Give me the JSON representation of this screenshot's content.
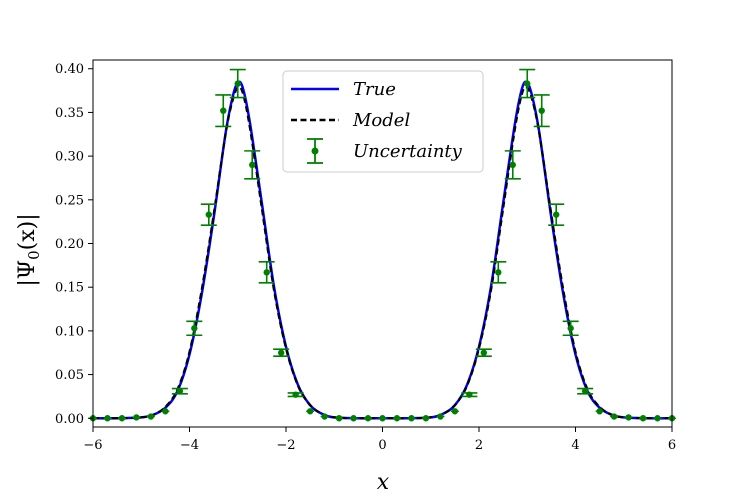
{
  "chart_data": {
    "type": "line",
    "xlabel": "x",
    "ylabel": "|Ψ0(x)|",
    "ylabel_base": "|Ψ",
    "ylabel_sub": "0",
    "ylabel_tail": "(x)|",
    "xlim": [
      -6,
      6
    ],
    "ylim": [
      -0.01,
      0.41
    ],
    "xticks": [
      -6,
      -4,
      -2,
      0,
      2,
      4,
      6
    ],
    "xtick_labels": [
      "−6",
      "−4",
      "−2",
      "0",
      "2",
      "4",
      "6"
    ],
    "yticks": [
      0.0,
      0.05,
      0.1,
      0.15,
      0.2,
      0.25,
      0.3,
      0.35,
      0.4
    ],
    "ytick_labels": [
      "0.00",
      "0.05",
      "0.10",
      "0.15",
      "0.20",
      "0.25",
      "0.30",
      "0.35",
      "0.40"
    ],
    "grid": false,
    "legend_position": "top-center",
    "colors": {
      "true": "#0000ff",
      "model": "#000000",
      "uncertainty": "#008000"
    },
    "series": [
      {
        "name": "True",
        "style": "solid",
        "x": [
          -6.0,
          -5.5,
          -5.0,
          -4.75,
          -4.5,
          -4.25,
          -4.0,
          -3.75,
          -3.5,
          -3.25,
          -3.1,
          -3.0,
          -2.9,
          -2.75,
          -2.5,
          -2.25,
          -2.0,
          -1.75,
          -1.5,
          -1.25,
          -1.0,
          -0.5,
          0.0,
          0.5,
          1.0,
          1.25,
          1.5,
          1.75,
          2.0,
          2.25,
          2.5,
          2.75,
          2.9,
          3.0,
          3.1,
          3.25,
          3.5,
          3.75,
          4.0,
          4.25,
          4.5,
          4.75,
          5.0,
          5.5,
          6.0
        ],
        "y": [
          0.0,
          0.0,
          0.001,
          0.004,
          0.012,
          0.031,
          0.073,
          0.141,
          0.229,
          0.327,
          0.369,
          0.384,
          0.379,
          0.339,
          0.246,
          0.151,
          0.082,
          0.038,
          0.015,
          0.005,
          0.001,
          0.0,
          0.0,
          0.0,
          0.001,
          0.005,
          0.015,
          0.038,
          0.082,
          0.151,
          0.246,
          0.339,
          0.379,
          0.384,
          0.369,
          0.327,
          0.229,
          0.141,
          0.073,
          0.031,
          0.012,
          0.004,
          0.001,
          0.0,
          0.0
        ]
      },
      {
        "name": "Model",
        "style": "dashed",
        "x": [
          -6.0,
          -5.5,
          -5.0,
          -4.75,
          -4.5,
          -4.25,
          -4.0,
          -3.75,
          -3.5,
          -3.25,
          -3.1,
          -3.0,
          -2.9,
          -2.75,
          -2.5,
          -2.25,
          -2.0,
          -1.75,
          -1.5,
          -1.25,
          -1.0,
          -0.5,
          0.0,
          0.5,
          1.0,
          1.25,
          1.5,
          1.75,
          2.0,
          2.25,
          2.5,
          2.75,
          2.9,
          3.0,
          3.1,
          3.25,
          3.5,
          3.75,
          4.0,
          4.25,
          4.5,
          4.75,
          5.0,
          5.5,
          6.0
        ],
        "y": [
          0.0,
          0.0,
          0.001,
          0.004,
          0.013,
          0.033,
          0.076,
          0.146,
          0.233,
          0.326,
          0.365,
          0.378,
          0.373,
          0.333,
          0.24,
          0.147,
          0.08,
          0.037,
          0.015,
          0.005,
          0.001,
          0.0,
          0.0,
          0.0,
          0.001,
          0.005,
          0.015,
          0.037,
          0.08,
          0.147,
          0.24,
          0.333,
          0.373,
          0.378,
          0.365,
          0.326,
          0.233,
          0.146,
          0.076,
          0.033,
          0.013,
          0.004,
          0.001,
          0.0,
          0.0
        ]
      },
      {
        "name": "Uncertainty",
        "style": "errorbar",
        "x": [
          -6.0,
          -5.7,
          -5.4,
          -5.1,
          -4.8,
          -4.5,
          -4.2,
          -3.9,
          -3.6,
          -3.3,
          -3.0,
          -2.7,
          -2.4,
          -2.1,
          -1.8,
          -1.5,
          -1.2,
          -0.9,
          -0.6,
          -0.3,
          0.0,
          0.3,
          0.6,
          0.9,
          1.2,
          1.5,
          1.8,
          2.1,
          2.4,
          2.7,
          3.0,
          3.3,
          3.6,
          3.9,
          4.2,
          4.5,
          4.8,
          5.1,
          5.4,
          5.7,
          6.0
        ],
        "y": [
          0.0,
          0.0,
          0.0,
          0.001,
          0.002,
          0.008,
          0.031,
          0.103,
          0.233,
          0.352,
          0.383,
          0.29,
          0.167,
          0.075,
          0.027,
          0.008,
          0.002,
          0.0,
          0.0,
          0.0,
          0.0,
          0.0,
          0.0,
          0.0,
          0.002,
          0.008,
          0.027,
          0.075,
          0.167,
          0.29,
          0.383,
          0.352,
          0.233,
          0.103,
          0.031,
          0.008,
          0.002,
          0.001,
          0.0,
          0.0,
          0.0
        ],
        "err": [
          0.0,
          0.0,
          0.0,
          0.0,
          0.0,
          0.0,
          0.003,
          0.008,
          0.012,
          0.018,
          0.016,
          0.016,
          0.012,
          0.004,
          0.002,
          0.0,
          0.0,
          0.0,
          0.0,
          0.0,
          0.0,
          0.0,
          0.0,
          0.0,
          0.0,
          0.0,
          0.002,
          0.004,
          0.012,
          0.016,
          0.016,
          0.018,
          0.012,
          0.008,
          0.003,
          0.0,
          0.0,
          0.0,
          0.0,
          0.0,
          0.0
        ]
      }
    ]
  }
}
